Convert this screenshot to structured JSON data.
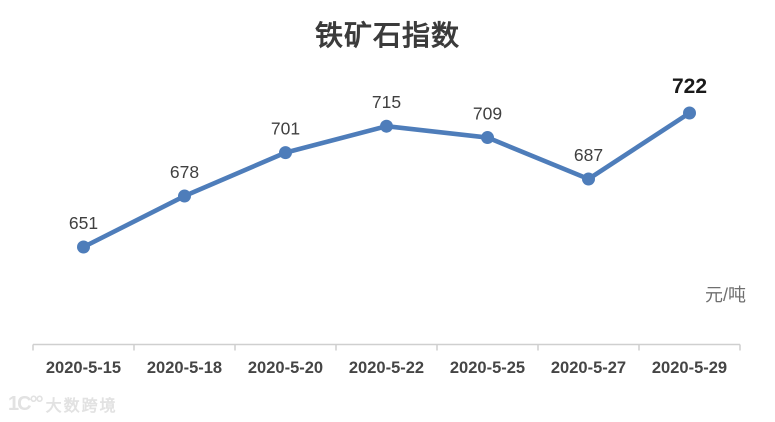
{
  "chart_data": {
    "type": "line",
    "title": "铁矿石指数",
    "categories": [
      "2020-5-15",
      "2020-5-18",
      "2020-5-20",
      "2020-5-22",
      "2020-5-25",
      "2020-5-27",
      "2020-5-29"
    ],
    "values": [
      651,
      678,
      701,
      715,
      709,
      687,
      722
    ],
    "series": [
      {
        "name": "铁矿石指数",
        "values": [
          651,
          678,
          701,
          715,
          709,
          687,
          722
        ]
      }
    ],
    "unit_label": "元/吨",
    "xlabel": "",
    "ylabel": "",
    "ylim": [
      640,
      730
    ],
    "grid": false,
    "legend_position": "none",
    "y_axis_visible": false,
    "x_axis_line": true,
    "data_labels": true,
    "emphasized_label_index": 6,
    "colors": {
      "series_line": "#4E7DBA",
      "marker": "#4E7DBA",
      "data_label": "#404040",
      "emphasized_label": "#1a1a1a",
      "axis_line": "#cfcfcf",
      "axis_label": "#454545",
      "unit_label": "#6f6f6f",
      "title": "#3b3b3b",
      "background": "#ffffff"
    }
  },
  "watermark": {
    "logo": "1Ϲ°°",
    "text": "大数跨境"
  }
}
